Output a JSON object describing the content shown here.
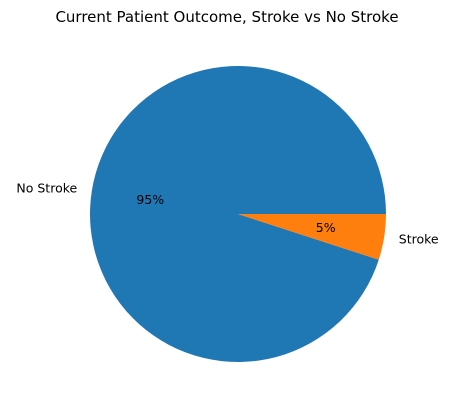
{
  "chart_data": {
    "type": "pie",
    "title": "Current Patient Outcome, Stroke vs No Stroke",
    "slices": [
      {
        "label": "No Stroke",
        "value": 95,
        "pct_label": "95%",
        "color": "#1f77b4"
      },
      {
        "label": "Stroke",
        "value": 5,
        "pct_label": "5%",
        "color": "#ff7f0e"
      }
    ],
    "start_angle_deg": 0,
    "direction": "counterclockwise"
  }
}
